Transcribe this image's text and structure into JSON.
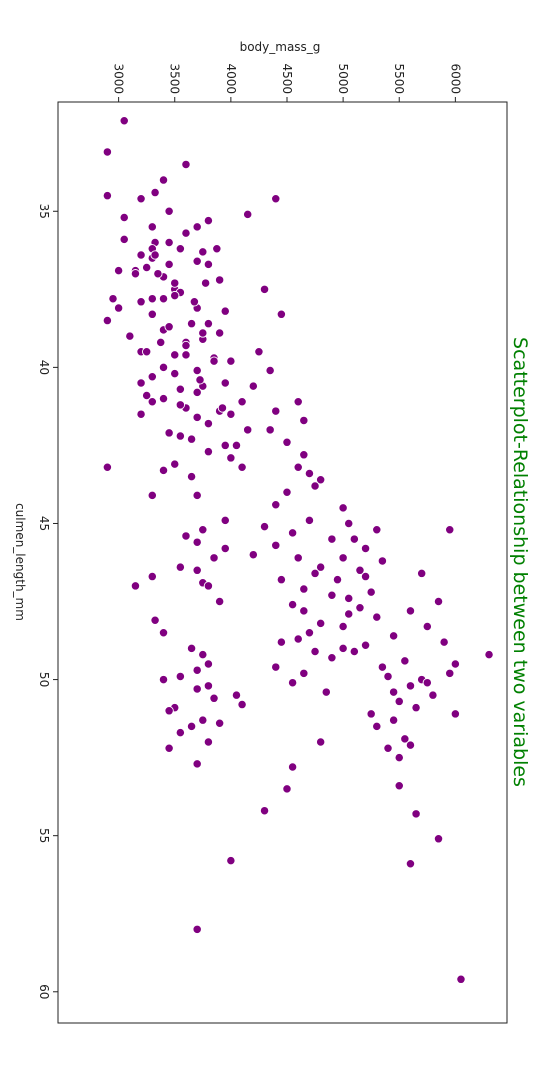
{
  "chart_data": {
    "type": "scatter",
    "title": "Scatterplot-Relationship between two variables",
    "xlabel": "culmen_length_mm",
    "ylabel": "body_mass_g",
    "xlim": [
      31.5,
      61.0
    ],
    "ylim": [
      2460,
      6460
    ],
    "x_ticks": [
      35,
      40,
      45,
      50,
      55,
      60
    ],
    "y_ticks": [
      3000,
      3500,
      4000,
      4500,
      5000,
      5500,
      6000
    ],
    "orientation": "rotated 90 degrees clockwise",
    "grid": false,
    "colors": {
      "point": "#800080",
      "point_edge": "#ffffff",
      "title": "#008000"
    },
    "points": [
      [
        32.1,
        3050
      ],
      [
        33.1,
        2900
      ],
      [
        33.5,
        3600
      ],
      [
        34.0,
        3400
      ],
      [
        34.4,
        3325
      ],
      [
        34.5,
        2900
      ],
      [
        34.6,
        3200
      ],
      [
        34.6,
        4400
      ],
      [
        35.0,
        3450
      ],
      [
        35.1,
        4150
      ],
      [
        35.2,
        3050
      ],
      [
        35.3,
        3800
      ],
      [
        35.5,
        3700
      ],
      [
        35.5,
        3300
      ],
      [
        35.7,
        3600
      ],
      [
        35.9,
        3050
      ],
      [
        36.0,
        3450
      ],
      [
        36.0,
        3325
      ],
      [
        36.2,
        3550
      ],
      [
        36.2,
        3300
      ],
      [
        36.3,
        3750
      ],
      [
        36.4,
        3200
      ],
      [
        36.5,
        3300
      ],
      [
        36.6,
        3700
      ],
      [
        36.7,
        3450
      ],
      [
        36.7,
        3800
      ],
      [
        36.8,
        3250
      ],
      [
        36.9,
        3150
      ],
      [
        37.0,
        3150
      ],
      [
        37.1,
        3400
      ],
      [
        37.2,
        3900
      ],
      [
        37.3,
        3775
      ],
      [
        37.5,
        3500
      ],
      [
        37.6,
        3550
      ],
      [
        37.7,
        3500
      ],
      [
        37.8,
        3400
      ],
      [
        37.8,
        3300
      ],
      [
        37.9,
        3200
      ],
      [
        38.1,
        3700
      ],
      [
        38.2,
        3950
      ],
      [
        38.3,
        3300
      ],
      [
        38.5,
        2900
      ],
      [
        38.6,
        3800
      ],
      [
        38.8,
        3400
      ],
      [
        38.9,
        3900
      ],
      [
        39.0,
        3100
      ],
      [
        39.1,
        3750
      ],
      [
        39.2,
        3600
      ],
      [
        39.3,
        3600
      ],
      [
        39.5,
        3200
      ],
      [
        39.5,
        3250
      ],
      [
        39.6,
        3500
      ],
      [
        39.7,
        3850
      ],
      [
        39.8,
        4000
      ],
      [
        40.0,
        3400
      ],
      [
        40.1,
        3700
      ],
      [
        40.2,
        3500
      ],
      [
        40.3,
        3300
      ],
      [
        40.5,
        3950
      ],
      [
        40.6,
        3750
      ],
      [
        40.7,
        3550
      ],
      [
        40.8,
        3700
      ],
      [
        40.9,
        3250
      ],
      [
        41.0,
        3400
      ],
      [
        41.1,
        3300
      ],
      [
        41.1,
        4100
      ],
      [
        41.3,
        3600
      ],
      [
        41.4,
        3900
      ],
      [
        41.5,
        4000
      ],
      [
        41.6,
        3700
      ],
      [
        41.8,
        3800
      ],
      [
        42.0,
        4150
      ],
      [
        42.1,
        3450
      ],
      [
        42.2,
        3550
      ],
      [
        42.3,
        3650
      ],
      [
        42.5,
        4050
      ],
      [
        42.7,
        3800
      ],
      [
        42.9,
        4000
      ],
      [
        43.1,
        3500
      ],
      [
        43.2,
        4100
      ],
      [
        43.3,
        3400
      ],
      [
        43.5,
        3650
      ],
      [
        44.1,
        3700
      ],
      [
        44.9,
        3950
      ],
      [
        45.2,
        3750
      ],
      [
        45.4,
        3600
      ],
      [
        45.6,
        3700
      ],
      [
        45.8,
        3950
      ],
      [
        46.0,
        4200
      ],
      [
        46.1,
        3850
      ],
      [
        46.4,
        3550
      ],
      [
        46.5,
        3700
      ],
      [
        46.7,
        3300
      ],
      [
        46.9,
        3750
      ],
      [
        47.0,
        3800
      ],
      [
        47.5,
        3900
      ],
      [
        48.1,
        3325
      ],
      [
        48.5,
        3400
      ],
      [
        49.0,
        3650
      ],
      [
        49.2,
        3750
      ],
      [
        49.5,
        3800
      ],
      [
        49.7,
        3700
      ],
      [
        49.9,
        3550
      ],
      [
        50.0,
        3400
      ],
      [
        50.2,
        3800
      ],
      [
        50.3,
        3700
      ],
      [
        50.5,
        4050
      ],
      [
        50.6,
        3850
      ],
      [
        50.8,
        4100
      ],
      [
        50.9,
        3500
      ],
      [
        51.0,
        3450
      ],
      [
        51.3,
        3750
      ],
      [
        51.4,
        3900
      ],
      [
        51.5,
        3650
      ],
      [
        51.7,
        3550
      ],
      [
        52.0,
        3800
      ],
      [
        52.2,
        3450
      ],
      [
        52.7,
        3700
      ],
      [
        55.8,
        4000
      ],
      [
        58.0,
        3700
      ],
      [
        37.5,
        4300
      ],
      [
        38.3,
        4450
      ],
      [
        39.5,
        4250
      ],
      [
        40.1,
        4350
      ],
      [
        40.6,
        4200
      ],
      [
        41.1,
        4600
      ],
      [
        41.4,
        4400
      ],
      [
        41.7,
        4650
      ],
      [
        42.0,
        4350
      ],
      [
        42.4,
        4500
      ],
      [
        42.8,
        4650
      ],
      [
        43.2,
        4600
      ],
      [
        43.4,
        4700
      ],
      [
        43.6,
        4800
      ],
      [
        43.8,
        4750
      ],
      [
        44.0,
        4500
      ],
      [
        44.4,
        4400
      ],
      [
        44.9,
        4700
      ],
      [
        45.1,
        4300
      ],
      [
        45.3,
        4550
      ],
      [
        45.5,
        4900
      ],
      [
        45.7,
        4400
      ],
      [
        46.1,
        4600
      ],
      [
        46.4,
        4800
      ],
      [
        46.6,
        4750
      ],
      [
        46.8,
        4450
      ],
      [
        47.1,
        4650
      ],
      [
        47.3,
        4900
      ],
      [
        47.6,
        4550
      ],
      [
        47.8,
        4650
      ],
      [
        48.2,
        4800
      ],
      [
        48.5,
        4700
      ],
      [
        48.7,
        4600
      ],
      [
        48.8,
        4450
      ],
      [
        49.1,
        4750
      ],
      [
        49.3,
        4900
      ],
      [
        49.6,
        4400
      ],
      [
        49.8,
        4650
      ],
      [
        50.1,
        4550
      ],
      [
        50.4,
        4850
      ],
      [
        52.0,
        4800
      ],
      [
        54.2,
        4300
      ],
      [
        52.8,
        4550
      ],
      [
        53.5,
        4500
      ],
      [
        44.5,
        5000
      ],
      [
        45.0,
        5050
      ],
      [
        45.2,
        5300
      ],
      [
        45.5,
        5100
      ],
      [
        45.8,
        5200
      ],
      [
        46.1,
        5000
      ],
      [
        46.2,
        5350
      ],
      [
        46.5,
        5150
      ],
      [
        46.8,
        4950
      ],
      [
        47.2,
        5250
      ],
      [
        47.4,
        5050
      ],
      [
        47.7,
        5150
      ],
      [
        48.0,
        5300
      ],
      [
        48.3,
        5000
      ],
      [
        48.6,
        5450
      ],
      [
        48.9,
        5200
      ],
      [
        49.1,
        5100
      ],
      [
        49.4,
        5550
      ],
      [
        49.6,
        5350
      ],
      [
        49.9,
        5400
      ],
      [
        50.0,
        5700
      ],
      [
        50.2,
        5600
      ],
      [
        50.5,
        5800
      ],
      [
        50.7,
        5500
      ],
      [
        50.9,
        5650
      ],
      [
        51.1,
        5250
      ],
      [
        51.3,
        5450
      ],
      [
        51.5,
        5300
      ],
      [
        51.9,
        5550
      ],
      [
        52.1,
        5600
      ],
      [
        52.5,
        5500
      ],
      [
        53.4,
        5500
      ],
      [
        54.3,
        5650
      ],
      [
        55.1,
        5850
      ],
      [
        55.9,
        5600
      ],
      [
        49.2,
        6300
      ],
      [
        45.2,
        5950
      ],
      [
        59.6,
        6050
      ],
      [
        51.1,
        6000
      ],
      [
        49.5,
        6000
      ],
      [
        48.8,
        5900
      ],
      [
        50.1,
        5750
      ],
      [
        47.8,
        5600
      ],
      [
        47.5,
        5850
      ],
      [
        48.3,
        5750
      ],
      [
        49.8,
        5950
      ],
      [
        50.4,
        5450
      ],
      [
        46.6,
        5700
      ],
      [
        52.2,
        5400
      ],
      [
        46.7,
        5200
      ],
      [
        47.9,
        5050
      ],
      [
        49.0,
        5000
      ],
      [
        47.0,
        3150
      ],
      [
        43.2,
        2900
      ],
      [
        37.8,
        2950
      ],
      [
        38.1,
        3000
      ],
      [
        36.9,
        3000
      ],
      [
        40.5,
        3200
      ],
      [
        41.5,
        3200
      ],
      [
        44.1,
        3300
      ],
      [
        36.4,
        3325
      ],
      [
        37.0,
        3350
      ],
      [
        39.2,
        3375
      ],
      [
        38.7,
        3450
      ],
      [
        40.2,
        3500
      ],
      [
        41.2,
        3550
      ],
      [
        39.6,
        3600
      ],
      [
        38.6,
        3650
      ],
      [
        37.9,
        3675
      ],
      [
        40.4,
        3725
      ],
      [
        36.2,
        3875
      ],
      [
        41.3,
        3925
      ],
      [
        42.5,
        3950
      ],
      [
        39.8,
        3850
      ],
      [
        38.9,
        3750
      ],
      [
        37.3,
        3500
      ]
    ]
  }
}
